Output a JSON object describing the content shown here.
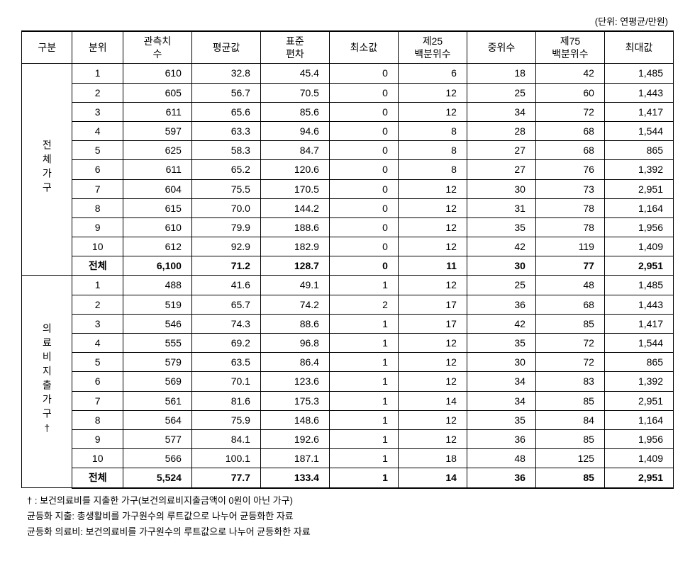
{
  "unit_label": "(단위: 연평균/만원)",
  "headers": {
    "gubun": "구분",
    "bunwi": "분위",
    "obs": "관측치\n수",
    "mean": "평균값",
    "std": "표준\n편차",
    "min": "최소값",
    "p25": "제25\n백분위수",
    "median": "중위수",
    "p75": "제75\n백분위수",
    "max": "최대값"
  },
  "groups": [
    {
      "label": "전 체 가 구",
      "rows": [
        {
          "bunwi": "1",
          "obs": "610",
          "mean": "32.8",
          "std": "45.4",
          "min": "0",
          "p25": "6",
          "median": "18",
          "p75": "42",
          "max": "1,485"
        },
        {
          "bunwi": "2",
          "obs": "605",
          "mean": "56.7",
          "std": "70.5",
          "min": "0",
          "p25": "12",
          "median": "25",
          "p75": "60",
          "max": "1,443"
        },
        {
          "bunwi": "3",
          "obs": "611",
          "mean": "65.6",
          "std": "85.6",
          "min": "0",
          "p25": "12",
          "median": "34",
          "p75": "72",
          "max": "1,417"
        },
        {
          "bunwi": "4",
          "obs": "597",
          "mean": "63.3",
          "std": "94.6",
          "min": "0",
          "p25": "8",
          "median": "28",
          "p75": "68",
          "max": "1,544"
        },
        {
          "bunwi": "5",
          "obs": "625",
          "mean": "58.3",
          "std": "84.7",
          "min": "0",
          "p25": "8",
          "median": "27",
          "p75": "68",
          "max": "865"
        },
        {
          "bunwi": "6",
          "obs": "611",
          "mean": "65.2",
          "std": "120.6",
          "min": "0",
          "p25": "8",
          "median": "27",
          "p75": "76",
          "max": "1,392"
        },
        {
          "bunwi": "7",
          "obs": "604",
          "mean": "75.5",
          "std": "170.5",
          "min": "0",
          "p25": "12",
          "median": "30",
          "p75": "73",
          "max": "2,951"
        },
        {
          "bunwi": "8",
          "obs": "615",
          "mean": "70.0",
          "std": "144.2",
          "min": "0",
          "p25": "12",
          "median": "31",
          "p75": "78",
          "max": "1,164"
        },
        {
          "bunwi": "9",
          "obs": "610",
          "mean": "79.9",
          "std": "188.6",
          "min": "0",
          "p25": "12",
          "median": "35",
          "p75": "78",
          "max": "1,956"
        },
        {
          "bunwi": "10",
          "obs": "612",
          "mean": "92.9",
          "std": "182.9",
          "min": "0",
          "p25": "12",
          "median": "42",
          "p75": "119",
          "max": "1,409"
        },
        {
          "bunwi": "전체",
          "obs": "6,100",
          "mean": "71.2",
          "std": "128.7",
          "min": "0",
          "p25": "11",
          "median": "30",
          "p75": "77",
          "max": "2,951",
          "bold": true
        }
      ]
    },
    {
      "label": "의 료 비 지 출 가 구 †",
      "rows": [
        {
          "bunwi": "1",
          "obs": "488",
          "mean": "41.6",
          "std": "49.1",
          "min": "1",
          "p25": "12",
          "median": "25",
          "p75": "48",
          "max": "1,485"
        },
        {
          "bunwi": "2",
          "obs": "519",
          "mean": "65.7",
          "std": "74.2",
          "min": "2",
          "p25": "17",
          "median": "36",
          "p75": "68",
          "max": "1,443"
        },
        {
          "bunwi": "3",
          "obs": "546",
          "mean": "74.3",
          "std": "88.6",
          "min": "1",
          "p25": "17",
          "median": "42",
          "p75": "85",
          "max": "1,417"
        },
        {
          "bunwi": "4",
          "obs": "555",
          "mean": "69.2",
          "std": "96.8",
          "min": "1",
          "p25": "12",
          "median": "35",
          "p75": "72",
          "max": "1,544"
        },
        {
          "bunwi": "5",
          "obs": "579",
          "mean": "63.5",
          "std": "86.4",
          "min": "1",
          "p25": "12",
          "median": "30",
          "p75": "72",
          "max": "865"
        },
        {
          "bunwi": "6",
          "obs": "569",
          "mean": "70.1",
          "std": "123.6",
          "min": "1",
          "p25": "12",
          "median": "34",
          "p75": "83",
          "max": "1,392"
        },
        {
          "bunwi": "7",
          "obs": "561",
          "mean": "81.6",
          "std": "175.3",
          "min": "1",
          "p25": "14",
          "median": "34",
          "p75": "85",
          "max": "2,951"
        },
        {
          "bunwi": "8",
          "obs": "564",
          "mean": "75.9",
          "std": "148.6",
          "min": "1",
          "p25": "12",
          "median": "35",
          "p75": "84",
          "max": "1,164"
        },
        {
          "bunwi": "9",
          "obs": "577",
          "mean": "84.1",
          "std": "192.6",
          "min": "1",
          "p25": "12",
          "median": "36",
          "p75": "85",
          "max": "1,956"
        },
        {
          "bunwi": "10",
          "obs": "566",
          "mean": "100.1",
          "std": "187.1",
          "min": "1",
          "p25": "18",
          "median": "48",
          "p75": "125",
          "max": "1,409"
        },
        {
          "bunwi": "전체",
          "obs": "5,524",
          "mean": "77.7",
          "std": "133.4",
          "min": "1",
          "p25": "14",
          "median": "36",
          "p75": "85",
          "max": "2,951",
          "bold": true
        }
      ]
    }
  ],
  "footnotes": [
    "† : 보건의료비를 지출한 가구(보건의료비지출금액이 0원이 아닌 가구)",
    "균등화 지출: 총생활비를 가구원수의 루트값으로 나누어 균등화한 자료",
    "균등화 의료비: 보건의료비를 가구원수의 루트값으로 나누어 균등화한 자료"
  ]
}
